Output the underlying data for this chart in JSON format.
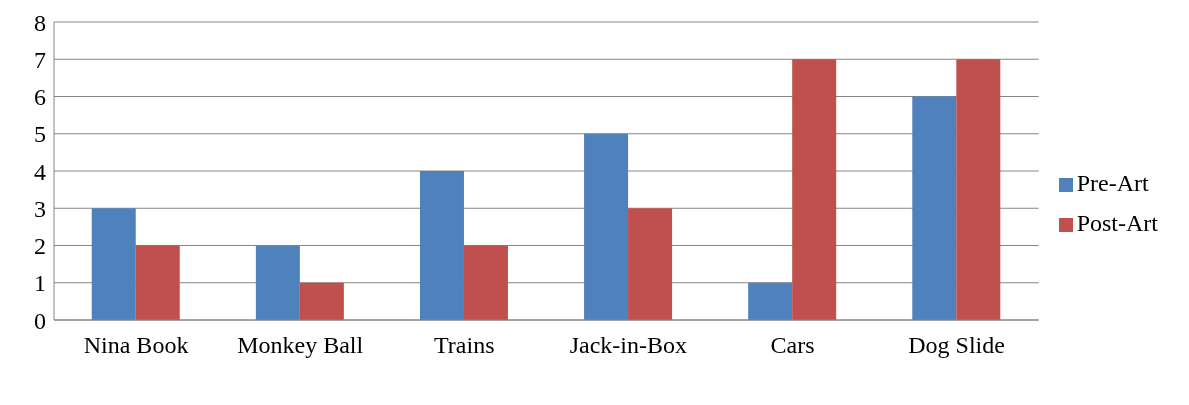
{
  "chart_data": {
    "type": "bar",
    "categories": [
      "Nina Book",
      "Monkey Ball",
      "Trains",
      "Jack-in-Box",
      "Cars",
      "Dog Slide"
    ],
    "series": [
      {
        "name": "Pre-Art",
        "color": "#4f81bd",
        "values": [
          3,
          2,
          4,
          5,
          1,
          6
        ]
      },
      {
        "name": "Post-Art",
        "color": "#c0504d",
        "values": [
          2,
          1,
          2,
          3,
          7,
          7
        ]
      }
    ],
    "ylim": [
      0,
      8
    ],
    "yticks": [
      0,
      1,
      2,
      3,
      4,
      5,
      6,
      7,
      8
    ],
    "grid": "y",
    "legend": "right"
  }
}
